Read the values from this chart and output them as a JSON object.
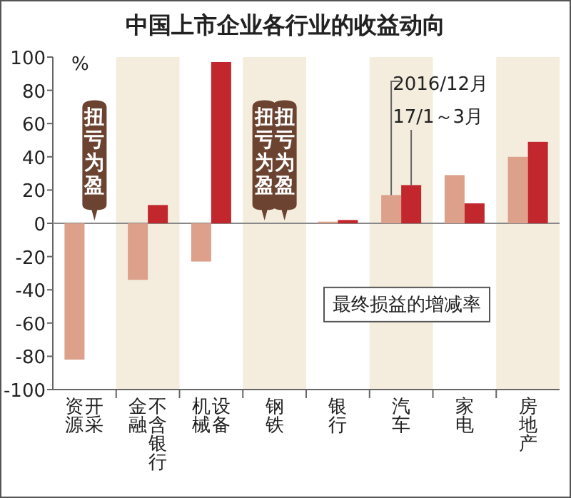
{
  "chart_data": {
    "type": "bar",
    "title": "中国上市企业各行业的收益动向",
    "ylabel": "%",
    "categories": [
      "资源开采",
      "金融不含银行",
      "机械设备",
      "钢铁",
      "银行",
      "汽车",
      "家电",
      "房地产"
    ],
    "series": [
      {
        "name": "2016/12月",
        "color": "#dca08b",
        "values": [
          -82,
          -34,
          -23,
          null,
          1,
          17,
          29,
          40
        ]
      },
      {
        "name": "17/1～3月",
        "color": "#c1272d",
        "values": [
          null,
          11,
          97,
          null,
          2,
          23,
          12,
          49
        ]
      }
    ],
    "ylim": [
      -100,
      100
    ],
    "yticks": [
      -100,
      -80,
      -60,
      -40,
      -20,
      0,
      20,
      40,
      60,
      80,
      100
    ],
    "bands": [
      {
        "axis": "x",
        "from": "金融不含银行",
        "to": "金融不含银行",
        "color": "#f4ecdd"
      },
      {
        "axis": "x",
        "from": "钢铁",
        "to": "钢铁",
        "color": "#f4ecdd"
      },
      {
        "axis": "x",
        "from": "汽车",
        "to": "汽车",
        "color": "#f4ecdd"
      },
      {
        "axis": "x",
        "from": "房地产",
        "to": "房地产",
        "color": "#f4ecdd"
      }
    ],
    "annotations": [
      "扭亏为盈",
      "扭亏为盈",
      "扭亏为盈",
      "最终损益的增减率"
    ]
  }
}
